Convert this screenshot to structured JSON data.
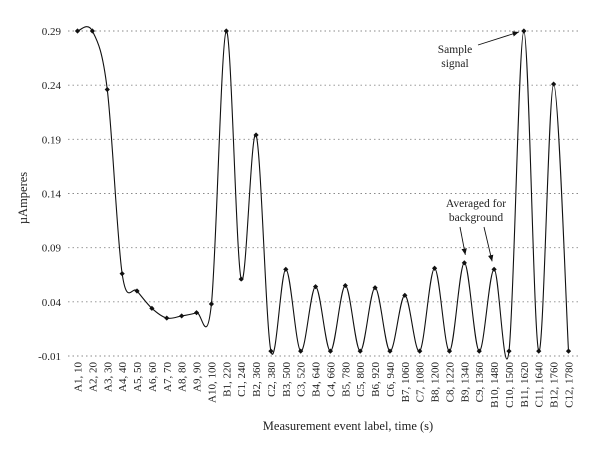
{
  "chart_data": {
    "type": "line",
    "title": "",
    "xlabel": "Measurement event label, time (s)",
    "ylabel": "µAmperes",
    "ylim": [
      -0.01,
      0.29
    ],
    "yticks": [
      "-0.01",
      "0.04",
      "0.09",
      "0.14",
      "0.19",
      "0.24",
      "0.29"
    ],
    "grid": true,
    "categories": [
      "A1, 10",
      "A2, 20",
      "A3, 30",
      "A4, 40",
      "A5, 50",
      "A6, 60",
      "A7, 70",
      "A8, 80",
      "A9, 90",
      "A10, 100",
      "B1, 220",
      "C1, 240",
      "B2, 360",
      "C2, 380",
      "B3, 500",
      "C3, 520",
      "B4, 640",
      "C4, 660",
      "B5, 780",
      "C5, 800",
      "B6, 920",
      "C6, 940",
      "B7, 1060",
      "C7, 1080",
      "B8, 1200",
      "C8, 1220",
      "B9, 1340",
      "C9, 1360",
      "B10, 1480",
      "C10, 1500",
      "B11, 1620",
      "C11, 1640",
      "B12, 1760",
      "C12, 1780"
    ],
    "series": [
      {
        "values": [
          0.29,
          0.29,
          0.236,
          0.066,
          0.05,
          0.034,
          0.025,
          0.027,
          0.03,
          0.038,
          0.29,
          0.061,
          0.194,
          -0.0055,
          0.07,
          -0.0055,
          0.054,
          -0.0055,
          0.055,
          -0.0055,
          0.053,
          -0.0055,
          0.046,
          -0.0055,
          0.071,
          -0.0055,
          0.076,
          -0.0055,
          0.07,
          -0.0055,
          0.29,
          -0.0055,
          0.241,
          -0.0055
        ]
      }
    ],
    "annotations": [
      {
        "text_lines": [
          "Sample",
          "signal"
        ],
        "target_index": 30
      },
      {
        "text_lines": [
          "Averaged for",
          "background"
        ],
        "target_indices": [
          26,
          28
        ]
      }
    ]
  },
  "colors": {
    "line": "#111111",
    "marker": "#111111",
    "grid": "#8a8a8a",
    "text": "#222222"
  }
}
